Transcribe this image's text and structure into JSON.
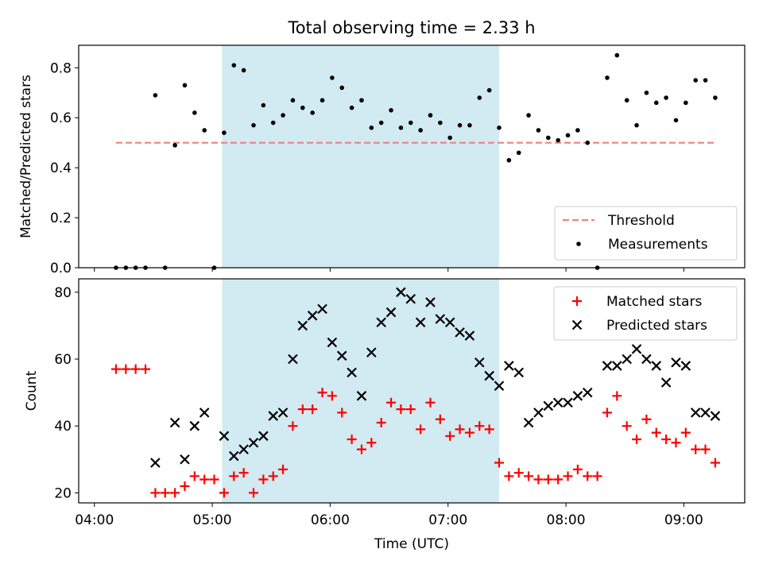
{
  "title": "Total observing time = 2.33 h",
  "colors": {
    "shade": "#add8e6",
    "threshold": "#f08080",
    "measurements": "#000000",
    "matched": "#ff0000",
    "predicted": "#000000"
  },
  "chart_data": [
    {
      "type": "scatter",
      "title": "Total observing time = 2.33 h",
      "ylabel": "Matched/Predicted stars",
      "xlim": [
        "03:52",
        "09:31"
      ],
      "ylim": [
        0,
        0.89
      ],
      "yticks": [
        "0.0",
        "0.2",
        "0.4",
        "0.6",
        "0.8"
      ],
      "shaded_span": [
        "05:05",
        "07:26"
      ],
      "legend_position": "lower right",
      "threshold": {
        "name": "Threshold",
        "y": 0.5,
        "x_range": [
          "04:11",
          "09:16"
        ],
        "style": "dashed"
      },
      "series": [
        {
          "name": "Measurements",
          "x": [
            "04:11",
            "04:16",
            "04:21",
            "04:26",
            "04:31",
            "04:36",
            "04:41",
            "04:46",
            "04:51",
            "04:56",
            "05:01",
            "05:06",
            "05:11",
            "05:16",
            "05:21",
            "05:26",
            "05:31",
            "05:36",
            "05:41",
            "05:46",
            "05:51",
            "05:56",
            "06:01",
            "06:06",
            "06:11",
            "06:16",
            "06:21",
            "06:26",
            "06:31",
            "06:36",
            "06:41",
            "06:46",
            "06:51",
            "06:56",
            "07:01",
            "07:06",
            "07:11",
            "07:16",
            "07:21",
            "07:26",
            "07:31",
            "07:36",
            "07:41",
            "07:46",
            "07:51",
            "07:56",
            "08:01",
            "08:06",
            "08:11",
            "08:16",
            "08:21",
            "08:26",
            "08:31",
            "08:36",
            "08:41",
            "08:46",
            "08:51",
            "08:56",
            "09:01",
            "09:06",
            "09:11",
            "09:16"
          ],
          "y": [
            0.0,
            0.0,
            0.0,
            0.0,
            0.69,
            0.0,
            0.49,
            0.73,
            0.62,
            0.55,
            0.0,
            0.54,
            0.81,
            0.79,
            0.57,
            0.65,
            0.58,
            0.61,
            0.67,
            0.64,
            0.62,
            0.67,
            0.76,
            0.72,
            0.64,
            0.67,
            0.56,
            0.58,
            0.63,
            0.56,
            0.58,
            0.55,
            0.61,
            0.58,
            0.52,
            0.57,
            0.57,
            0.68,
            0.71,
            0.56,
            0.43,
            0.46,
            0.61,
            0.55,
            0.52,
            0.51,
            0.53,
            0.55,
            0.5,
            0.0,
            0.76,
            0.85,
            0.67,
            0.57,
            0.7,
            0.66,
            0.68,
            0.59,
            0.66,
            0.75,
            0.75,
            0.68
          ]
        }
      ]
    },
    {
      "type": "scatter",
      "xlabel": "Time (UTC)",
      "ylabel": "Count",
      "xlim": [
        "03:52",
        "09:31"
      ],
      "ylim": [
        17,
        84
      ],
      "yticks": [
        "20",
        "40",
        "60",
        "80"
      ],
      "xticks": [
        "04:00",
        "05:00",
        "06:00",
        "07:00",
        "08:00",
        "09:00"
      ],
      "shaded_span": [
        "05:05",
        "07:26"
      ],
      "legend_position": "upper right",
      "series": [
        {
          "name": "Matched stars",
          "marker": "+",
          "x": [
            "04:11",
            "04:16",
            "04:21",
            "04:26",
            "04:31",
            "04:36",
            "04:41",
            "04:46",
            "04:51",
            "04:56",
            "05:01",
            "05:06",
            "05:11",
            "05:16",
            "05:21",
            "05:26",
            "05:31",
            "05:36",
            "05:41",
            "05:46",
            "05:51",
            "05:56",
            "06:01",
            "06:06",
            "06:11",
            "06:16",
            "06:21",
            "06:26",
            "06:31",
            "06:36",
            "06:41",
            "06:46",
            "06:51",
            "06:56",
            "07:01",
            "07:06",
            "07:11",
            "07:16",
            "07:21",
            "07:26",
            "07:31",
            "07:36",
            "07:41",
            "07:46",
            "07:51",
            "07:56",
            "08:01",
            "08:06",
            "08:11",
            "08:16",
            "08:21",
            "08:26",
            "08:31",
            "08:36",
            "08:41",
            "08:46",
            "08:51",
            "08:56",
            "09:01",
            "09:06",
            "09:11",
            "09:16"
          ],
          "y": [
            57,
            57,
            57,
            57,
            20,
            20,
            20,
            22,
            25,
            24,
            24,
            20,
            25,
            26,
            20,
            24,
            25,
            27,
            40,
            45,
            45,
            50,
            49,
            44,
            36,
            33,
            35,
            41,
            47,
            45,
            45,
            39,
            47,
            42,
            37,
            39,
            38,
            40,
            39,
            29,
            25,
            26,
            25,
            24,
            24,
            24,
            25,
            27,
            25,
            25,
            44,
            49,
            40,
            36,
            42,
            38,
            36,
            35,
            38,
            33,
            33,
            29
          ]
        },
        {
          "name": "Predicted stars",
          "marker": "x",
          "x": [
            "04:31",
            "04:41",
            "04:46",
            "04:51",
            "04:56",
            "05:06",
            "05:11",
            "05:16",
            "05:21",
            "05:26",
            "05:31",
            "05:36",
            "05:41",
            "05:46",
            "05:51",
            "05:56",
            "06:01",
            "06:06",
            "06:11",
            "06:16",
            "06:21",
            "06:26",
            "06:31",
            "06:36",
            "06:41",
            "06:46",
            "06:51",
            "06:56",
            "07:01",
            "07:06",
            "07:11",
            "07:16",
            "07:21",
            "07:26",
            "07:31",
            "07:36",
            "07:41",
            "07:46",
            "07:51",
            "07:56",
            "08:01",
            "08:06",
            "08:11",
            "08:21",
            "08:26",
            "08:31",
            "08:36",
            "08:41",
            "08:46",
            "08:51",
            "08:56",
            "09:01",
            "09:06",
            "09:11",
            "09:16"
          ],
          "y": [
            29,
            41,
            30,
            40,
            44,
            37,
            31,
            33,
            35,
            37,
            43,
            44,
            60,
            70,
            73,
            75,
            65,
            61,
            56,
            49,
            62,
            71,
            74,
            80,
            78,
            71,
            77,
            72,
            71,
            68,
            67,
            59,
            55,
            52,
            58,
            56,
            41,
            44,
            46,
            47,
            47,
            49,
            50,
            58,
            58,
            60,
            63,
            60,
            58,
            53,
            59,
            58,
            44,
            44,
            43
          ]
        }
      ]
    }
  ]
}
